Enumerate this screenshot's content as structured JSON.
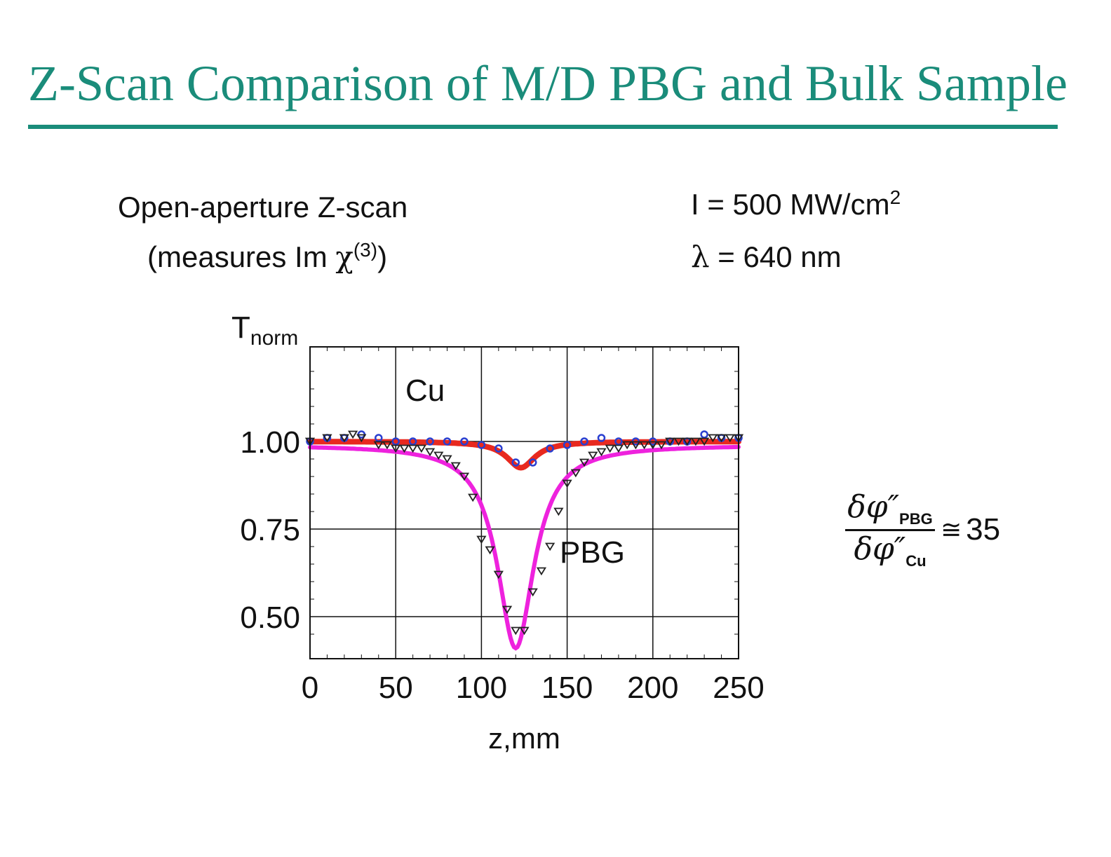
{
  "slide": {
    "title": "Z-Scan Comparison of M/D PBG and Bulk Sample",
    "left_note_line1": "Open-aperture Z-scan",
    "left_note_line2_prefix": "(measures Im ",
    "left_note_line2_symbol": "χ",
    "left_note_line2_sup": "(3)",
    "left_note_line2_suffix": ")",
    "right_note_line1": "I = 500 MW/cm",
    "right_note_line1_sup": "2",
    "right_note_line2_symbol": "λ",
    "right_note_line2_rest": " = 640 nm",
    "ratio_numerator": "δφ″",
    "ratio_numerator_sub": "PBG",
    "ratio_denominator": "δφ″",
    "ratio_denominator_sub": "Cu",
    "ratio_relation": "≅",
    "ratio_value": "35"
  },
  "chart_data": {
    "type": "scatter",
    "title": "",
    "xlabel": "z,mm",
    "ylabel": "T",
    "ylabel_sub": "norm",
    "xlim": [
      0,
      250
    ],
    "ylim": [
      0.38,
      1.27
    ],
    "xticks": [
      0,
      50,
      100,
      150,
      200,
      250
    ],
    "xtick_labels": [
      "0",
      "50",
      "100",
      "150",
      "200",
      "250"
    ],
    "yticks": [
      0.5,
      0.75,
      1.0
    ],
    "ytick_labels": [
      "0.50",
      "0.75",
      "1.00"
    ],
    "grid": true,
    "series": [
      {
        "name": "Cu",
        "kind": "measured",
        "marker": "circle",
        "color": "#2a3fd0",
        "x": [
          0,
          10,
          20,
          30,
          40,
          50,
          60,
          70,
          80,
          90,
          100,
          110,
          120,
          130,
          140,
          150,
          160,
          170,
          180,
          190,
          200,
          210,
          220,
          230,
          240,
          250
        ],
        "y": [
          1.0,
          1.01,
          1.01,
          1.02,
          1.01,
          1.0,
          1.0,
          1.0,
          1.0,
          1.0,
          0.99,
          0.98,
          0.94,
          0.94,
          0.98,
          0.99,
          1.0,
          1.01,
          1.0,
          1.0,
          1.0,
          1.0,
          1.0,
          1.02,
          1.01,
          1.01
        ]
      },
      {
        "name": "Cu",
        "kind": "fit",
        "color": "#e8291f",
        "center": 123,
        "baseline": 1.0,
        "dip": 0.075,
        "halfwidth": 10
      },
      {
        "name": "PBG",
        "kind": "measured",
        "marker": "triangle-down",
        "color": "#222222",
        "x": [
          0,
          10,
          20,
          25,
          30,
          40,
          45,
          50,
          55,
          60,
          65,
          70,
          75,
          80,
          85,
          90,
          95,
          100,
          105,
          110,
          115,
          120,
          125,
          130,
          135,
          140,
          145,
          150,
          155,
          160,
          165,
          170,
          175,
          180,
          185,
          190,
          195,
          200,
          205,
          210,
          215,
          220,
          225,
          230,
          235,
          240,
          245,
          250
        ],
        "y": [
          1.0,
          1.01,
          1.01,
          1.02,
          1.01,
          0.99,
          0.99,
          0.98,
          0.98,
          0.98,
          0.98,
          0.97,
          0.96,
          0.95,
          0.93,
          0.9,
          0.84,
          0.72,
          0.69,
          0.62,
          0.52,
          0.46,
          0.46,
          0.57,
          0.63,
          0.7,
          0.8,
          0.88,
          0.91,
          0.94,
          0.96,
          0.97,
          0.98,
          0.98,
          0.99,
          0.99,
          0.99,
          0.99,
          0.99,
          1.0,
          1.0,
          1.0,
          1.0,
          1.0,
          1.01,
          1.01,
          1.01,
          1.01
        ]
      },
      {
        "name": "PBG",
        "kind": "fit",
        "color": "#ee22dd",
        "center": 120,
        "baseline": 0.99,
        "dip": 0.58,
        "halfwidth": 13
      }
    ],
    "annotations": [
      "Cu",
      "PBG"
    ]
  }
}
